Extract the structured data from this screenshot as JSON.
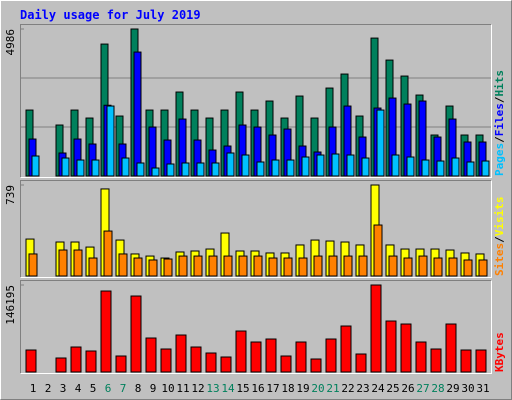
{
  "chart_data": [
    {
      "type": "bar",
      "title": "Daily usage for July 2019",
      "ylim": [
        0,
        4986
      ],
      "yticks": [
        4986
      ],
      "legend_separator": "/",
      "series": [
        {
          "name": "Hits",
          "color": "#00805c",
          "values": [
            2237,
            0,
            1729,
            2237,
            1966,
            4475,
            2034,
            4986,
            2237,
            2237,
            2848,
            2237,
            1966,
            2237,
            2848,
            2237,
            2543,
            1966,
            2712,
            1966,
            2983,
            3458,
            2034,
            4678,
            3932,
            3390,
            2746,
            1390,
            2373,
            1390,
            1390
          ]
        },
        {
          "name": "Files",
          "color": "#0000ff",
          "values": [
            1254,
            0,
            780,
            1254,
            1085,
            2400,
            1085,
            4204,
            1661,
            1220,
            1932,
            1220,
            881,
            1017,
            1729,
            1661,
            1390,
            1593,
            1017,
            814,
            1661,
            2373,
            1322,
            2305,
            2644,
            2441,
            2543,
            1322,
            1932,
            1153,
            1153
          ]
        },
        {
          "name": "Pages",
          "color": "#00c0ff",
          "values": [
            678,
            0,
            610,
            542,
            542,
            2373,
            610,
            441,
            271,
            407,
            441,
            441,
            441,
            780,
            712,
            475,
            542,
            542,
            644,
            712,
            746,
            712,
            610,
            2237,
            712,
            644,
            542,
            508,
            610,
            475,
            508
          ]
        }
      ]
    },
    {
      "type": "bar",
      "ylim": [
        0,
        739
      ],
      "yticks": [
        739
      ],
      "legend_separator": "/",
      "series": [
        {
          "name": "Visits",
          "color": "#ffff00",
          "values": [
            300,
            0,
            276,
            276,
            235,
            707,
            292,
            179,
            162,
            146,
            195,
            203,
            219,
            349,
            203,
            203,
            187,
            187,
            252,
            292,
            284,
            276,
            252,
            739,
            252,
            219,
            219,
            219,
            211,
            187,
            179
          ]
        },
        {
          "name": "Sites",
          "color": "#ff8000",
          "values": [
            179,
            0,
            211,
            211,
            146,
            365,
            179,
            146,
            130,
            138,
            162,
            162,
            162,
            162,
            162,
            162,
            146,
            146,
            146,
            162,
            162,
            162,
            162,
            414,
            162,
            146,
            162,
            146,
            146,
            130,
            130
          ]
        }
      ]
    },
    {
      "type": "bar",
      "ylim": [
        0,
        146195
      ],
      "yticks": [
        146195
      ],
      "categories": [
        "1",
        "2",
        "3",
        "4",
        "5",
        "6",
        "7",
        "8",
        "9",
        "10",
        "11",
        "12",
        "13",
        "14",
        "15",
        "16",
        "17",
        "18",
        "19",
        "20",
        "21",
        "22",
        "23",
        "24",
        "25",
        "26",
        "27",
        "28",
        "29",
        "30",
        "31"
      ],
      "category_colors": [
        "#000000",
        "#000000",
        "#000000",
        "#000000",
        "#000000",
        "#00805c",
        "#00805c",
        "#000000",
        "#000000",
        "#000000",
        "#000000",
        "#000000",
        "#00805c",
        "#00805c",
        "#000000",
        "#000000",
        "#000000",
        "#000000",
        "#000000",
        "#00805c",
        "#00805c",
        "#000000",
        "#000000",
        "#000000",
        "#000000",
        "#000000",
        "#00805c",
        "#00805c",
        "#000000",
        "#000000",
        "#000000"
      ],
      "series": [
        {
          "name": "KBytes",
          "color": "#ff0000",
          "values": [
            36960,
            0,
            23520,
            42000,
            35280,
            136080,
            26880,
            127680,
            57120,
            38640,
            62160,
            42000,
            31920,
            25200,
            68880,
            50400,
            55440,
            26880,
            50400,
            21840,
            55440,
            77280,
            30240,
            146195,
            85680,
            80640,
            50400,
            38640,
            80640,
            36960,
            36960
          ]
        }
      ]
    }
  ]
}
